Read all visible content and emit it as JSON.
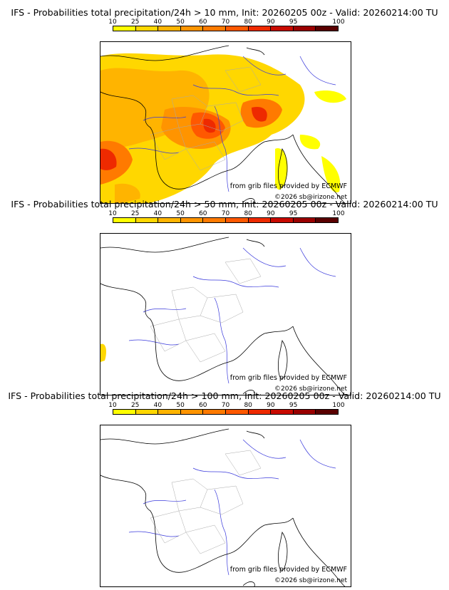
{
  "colorbar": {
    "ticks": [
      "10",
      "25",
      "40",
      "50",
      "60",
      "70",
      "80",
      "90",
      "95",
      "100"
    ],
    "colors": [
      "#ffff00",
      "#ffd700",
      "#ffb400",
      "#ff9400",
      "#ff7a00",
      "#ff5800",
      "#ee2a00",
      "#c80a00",
      "#9a0000",
      "#5a0000"
    ]
  },
  "panels": [
    {
      "title": "IFS - Probabilities total precipitation/24h > 10 mm, Init: 20260205 00z - Valid: 20260214:00 TU",
      "credit": "from grib files provided by ECMWF",
      "copyright": "©2026 sb@irizone.net"
    },
    {
      "title": "IFS - Probabilities total precipitation/24h > 50 mm, Init: 20260205 00z - Valid: 20260214:00 TU",
      "credit": "from grib files provided by ECMWF",
      "copyright": "©2026 sb@irizone.net"
    },
    {
      "title": "IFS - Probabilities total precipitation/24h > 100 mm, Init: 20260205 00z - Valid: 20260214:00 TU",
      "credit": "from grib files provided by ECMWF",
      "copyright": "©2026 sb@irizone.net"
    }
  ]
}
